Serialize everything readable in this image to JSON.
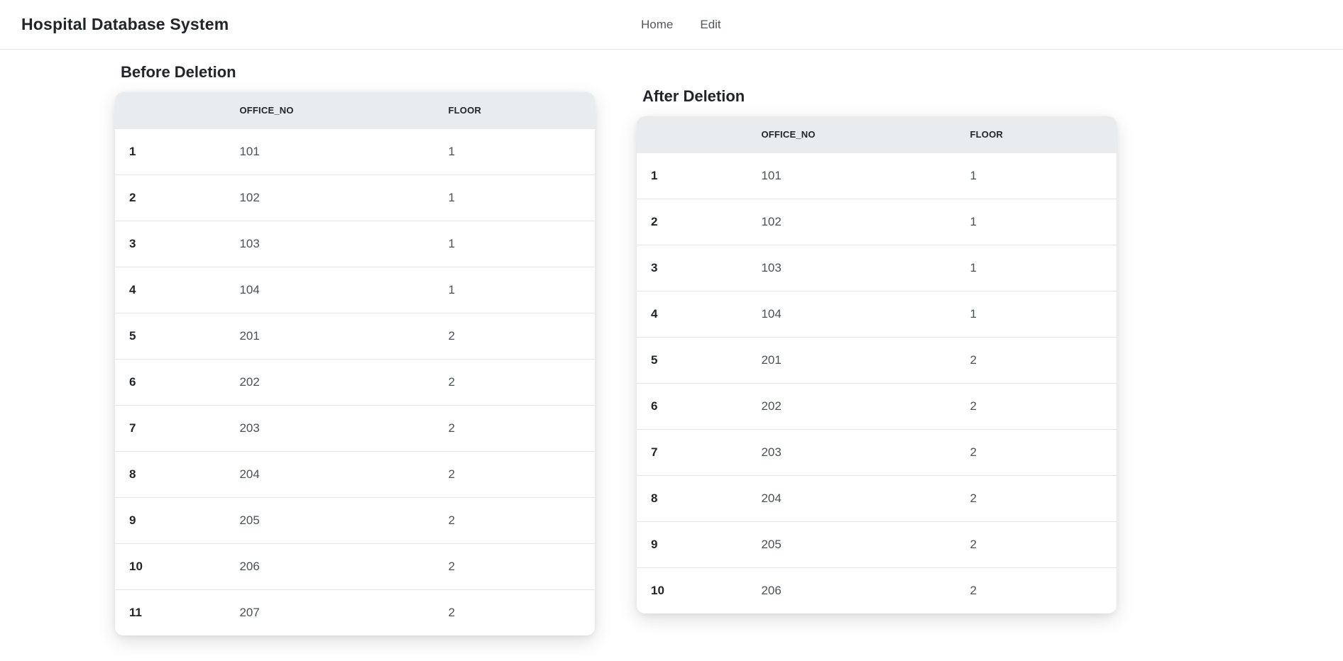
{
  "navbar": {
    "brand": "Hospital Database System",
    "links": [
      {
        "label": "Home"
      },
      {
        "label": "Edit"
      }
    ]
  },
  "tables": {
    "before": {
      "title": "Before Deletion",
      "columns": [
        "",
        "OFFICE_NO",
        "FLOOR"
      ],
      "rows": [
        [
          "1",
          "101",
          "1"
        ],
        [
          "2",
          "102",
          "1"
        ],
        [
          "3",
          "103",
          "1"
        ],
        [
          "4",
          "104",
          "1"
        ],
        [
          "5",
          "201",
          "2"
        ],
        [
          "6",
          "202",
          "2"
        ],
        [
          "7",
          "203",
          "2"
        ],
        [
          "8",
          "204",
          "2"
        ],
        [
          "9",
          "205",
          "2"
        ],
        [
          "10",
          "206",
          "2"
        ],
        [
          "11",
          "207",
          "2"
        ]
      ]
    },
    "after": {
      "title": "After Deletion",
      "columns": [
        "",
        "OFFICE_NO",
        "FLOOR"
      ],
      "rows": [
        [
          "1",
          "101",
          "1"
        ],
        [
          "2",
          "102",
          "1"
        ],
        [
          "3",
          "103",
          "1"
        ],
        [
          "4",
          "104",
          "1"
        ],
        [
          "5",
          "201",
          "2"
        ],
        [
          "6",
          "202",
          "2"
        ],
        [
          "7",
          "203",
          "2"
        ],
        [
          "8",
          "204",
          "2"
        ],
        [
          "9",
          "205",
          "2"
        ],
        [
          "10",
          "206",
          "2"
        ]
      ]
    }
  },
  "colors": {
    "table_header_bg": "#e9ecef",
    "row_divider": "#e3e6e9",
    "navbar_border": "#dee2e6",
    "heading_text": "#212529",
    "cell_text": "#4a5157"
  }
}
